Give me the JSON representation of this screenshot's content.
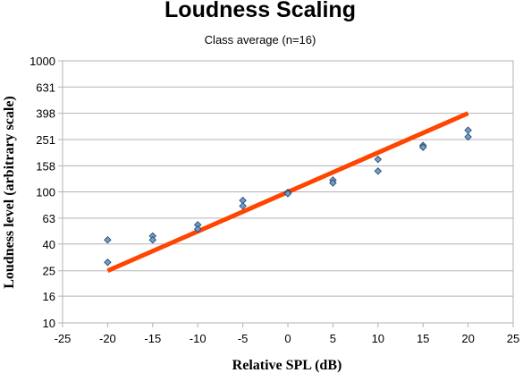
{
  "chart_data": {
    "type": "scatter",
    "title": "Loudness Scaling",
    "subtitle": "Class average (n=16)",
    "xlabel": "Relative SPL (dB)",
    "ylabel": "Loudness level (arbitrary scale)",
    "x_scale": "linear",
    "y_scale": "log",
    "xlim": [
      -25,
      25
    ],
    "ylim": [
      10,
      1000
    ],
    "x_ticks": [
      -25,
      -20,
      -15,
      -10,
      -5,
      0,
      5,
      10,
      15,
      20,
      25
    ],
    "y_ticks": [
      10,
      16,
      25,
      40,
      63,
      100,
      158,
      251,
      398,
      631,
      1000
    ],
    "grid": true,
    "legend": "none",
    "series": [
      {
        "kind": "scatter",
        "marker": "diamond",
        "color": "#6e9fd0",
        "points": [
          {
            "x": -20,
            "y": 43
          },
          {
            "x": -20,
            "y": 29
          },
          {
            "x": -15,
            "y": 46
          },
          {
            "x": -15,
            "y": 43
          },
          {
            "x": -10,
            "y": 56
          },
          {
            "x": -10,
            "y": 52
          },
          {
            "x": -5,
            "y": 86
          },
          {
            "x": -5,
            "y": 78
          },
          {
            "x": 0,
            "y": 99
          },
          {
            "x": 0,
            "y": 97
          },
          {
            "x": 5,
            "y": 123
          },
          {
            "x": 5,
            "y": 117
          },
          {
            "x": 10,
            "y": 177
          },
          {
            "x": 10,
            "y": 144
          },
          {
            "x": 15,
            "y": 226
          },
          {
            "x": 15,
            "y": 219
          },
          {
            "x": 20,
            "y": 295
          },
          {
            "x": 20,
            "y": 263
          }
        ]
      },
      {
        "kind": "line",
        "color": "#ff4500",
        "points": [
          {
            "x": -20,
            "y": 25
          },
          {
            "x": 20,
            "y": 398
          }
        ]
      }
    ]
  }
}
